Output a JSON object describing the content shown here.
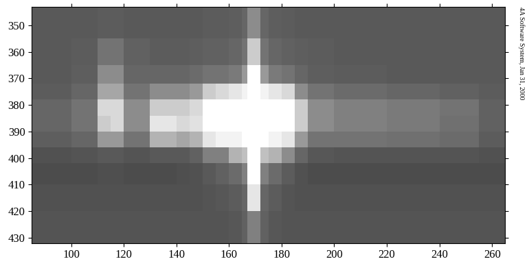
{
  "chart_data": {
    "type": "heatmap",
    "annotation": "4A Software System, Jan 31, 2000",
    "color": "gray",
    "xlim": [
      85,
      265
    ],
    "ylim": [
      432,
      343
    ],
    "xticks": [
      100,
      120,
      140,
      160,
      180,
      200,
      220,
      240,
      260
    ],
    "yticks": [
      350,
      360,
      370,
      380,
      390,
      400,
      410,
      420,
      430
    ],
    "x_edges": [
      85,
      100,
      110,
      115,
      120,
      130,
      135,
      140,
      145,
      150,
      155,
      160,
      165,
      167,
      172,
      175,
      180,
      185,
      190,
      200,
      220,
      240,
      255,
      265
    ],
    "y_edges": [
      343,
      355,
      365,
      372,
      378,
      384,
      390,
      396,
      402,
      410,
      420,
      432
    ],
    "color_range": [
      0,
      100
    ],
    "cells": [
      [
        35,
        35,
        36,
        36,
        35,
        35,
        35,
        35,
        35,
        36,
        36,
        37,
        40,
        55,
        40,
        37,
        36,
        35,
        35,
        35,
        35,
        35,
        35
      ],
      [
        35,
        36,
        45,
        45,
        38,
        36,
        36,
        36,
        37,
        38,
        38,
        40,
        45,
        80,
        45,
        40,
        38,
        37,
        36,
        35,
        35,
        35,
        35
      ],
      [
        35,
        37,
        55,
        55,
        40,
        40,
        40,
        40,
        42,
        45,
        45,
        48,
        60,
        100,
        60,
        48,
        45,
        40,
        37,
        36,
        35,
        35,
        35
      ],
      [
        36,
        40,
        65,
        65,
        45,
        55,
        55,
        55,
        60,
        80,
        85,
        90,
        95,
        100,
        95,
        90,
        85,
        55,
        45,
        42,
        40,
        38,
        36
      ],
      [
        40,
        45,
        85,
        85,
        55,
        80,
        80,
        80,
        85,
        100,
        100,
        100,
        100,
        100,
        100,
        100,
        100,
        80,
        55,
        50,
        48,
        45,
        38
      ],
      [
        40,
        45,
        80,
        85,
        55,
        90,
        90,
        85,
        88,
        100,
        100,
        100,
        100,
        100,
        100,
        100,
        100,
        80,
        55,
        50,
        48,
        44,
        38
      ],
      [
        37,
        40,
        60,
        60,
        45,
        70,
        70,
        65,
        70,
        90,
        95,
        95,
        100,
        100,
        100,
        95,
        90,
        60,
        45,
        45,
        44,
        42,
        36
      ],
      [
        32,
        33,
        35,
        35,
        33,
        35,
        35,
        35,
        38,
        50,
        50,
        70,
        75,
        100,
        75,
        70,
        55,
        40,
        34,
        33,
        33,
        33,
        32
      ],
      [
        30,
        30,
        31,
        31,
        30,
        30,
        30,
        31,
        32,
        35,
        38,
        42,
        50,
        100,
        50,
        42,
        36,
        32,
        30,
        30,
        30,
        30,
        30
      ],
      [
        32,
        32,
        32,
        32,
        32,
        32,
        32,
        32,
        32,
        33,
        34,
        36,
        40,
        90,
        40,
        36,
        33,
        32,
        32,
        32,
        32,
        32,
        32
      ],
      [
        33,
        33,
        33,
        33,
        33,
        33,
        33,
        33,
        33,
        33,
        33,
        34,
        38,
        50,
        38,
        34,
        33,
        33,
        33,
        33,
        33,
        33,
        33
      ]
    ]
  }
}
